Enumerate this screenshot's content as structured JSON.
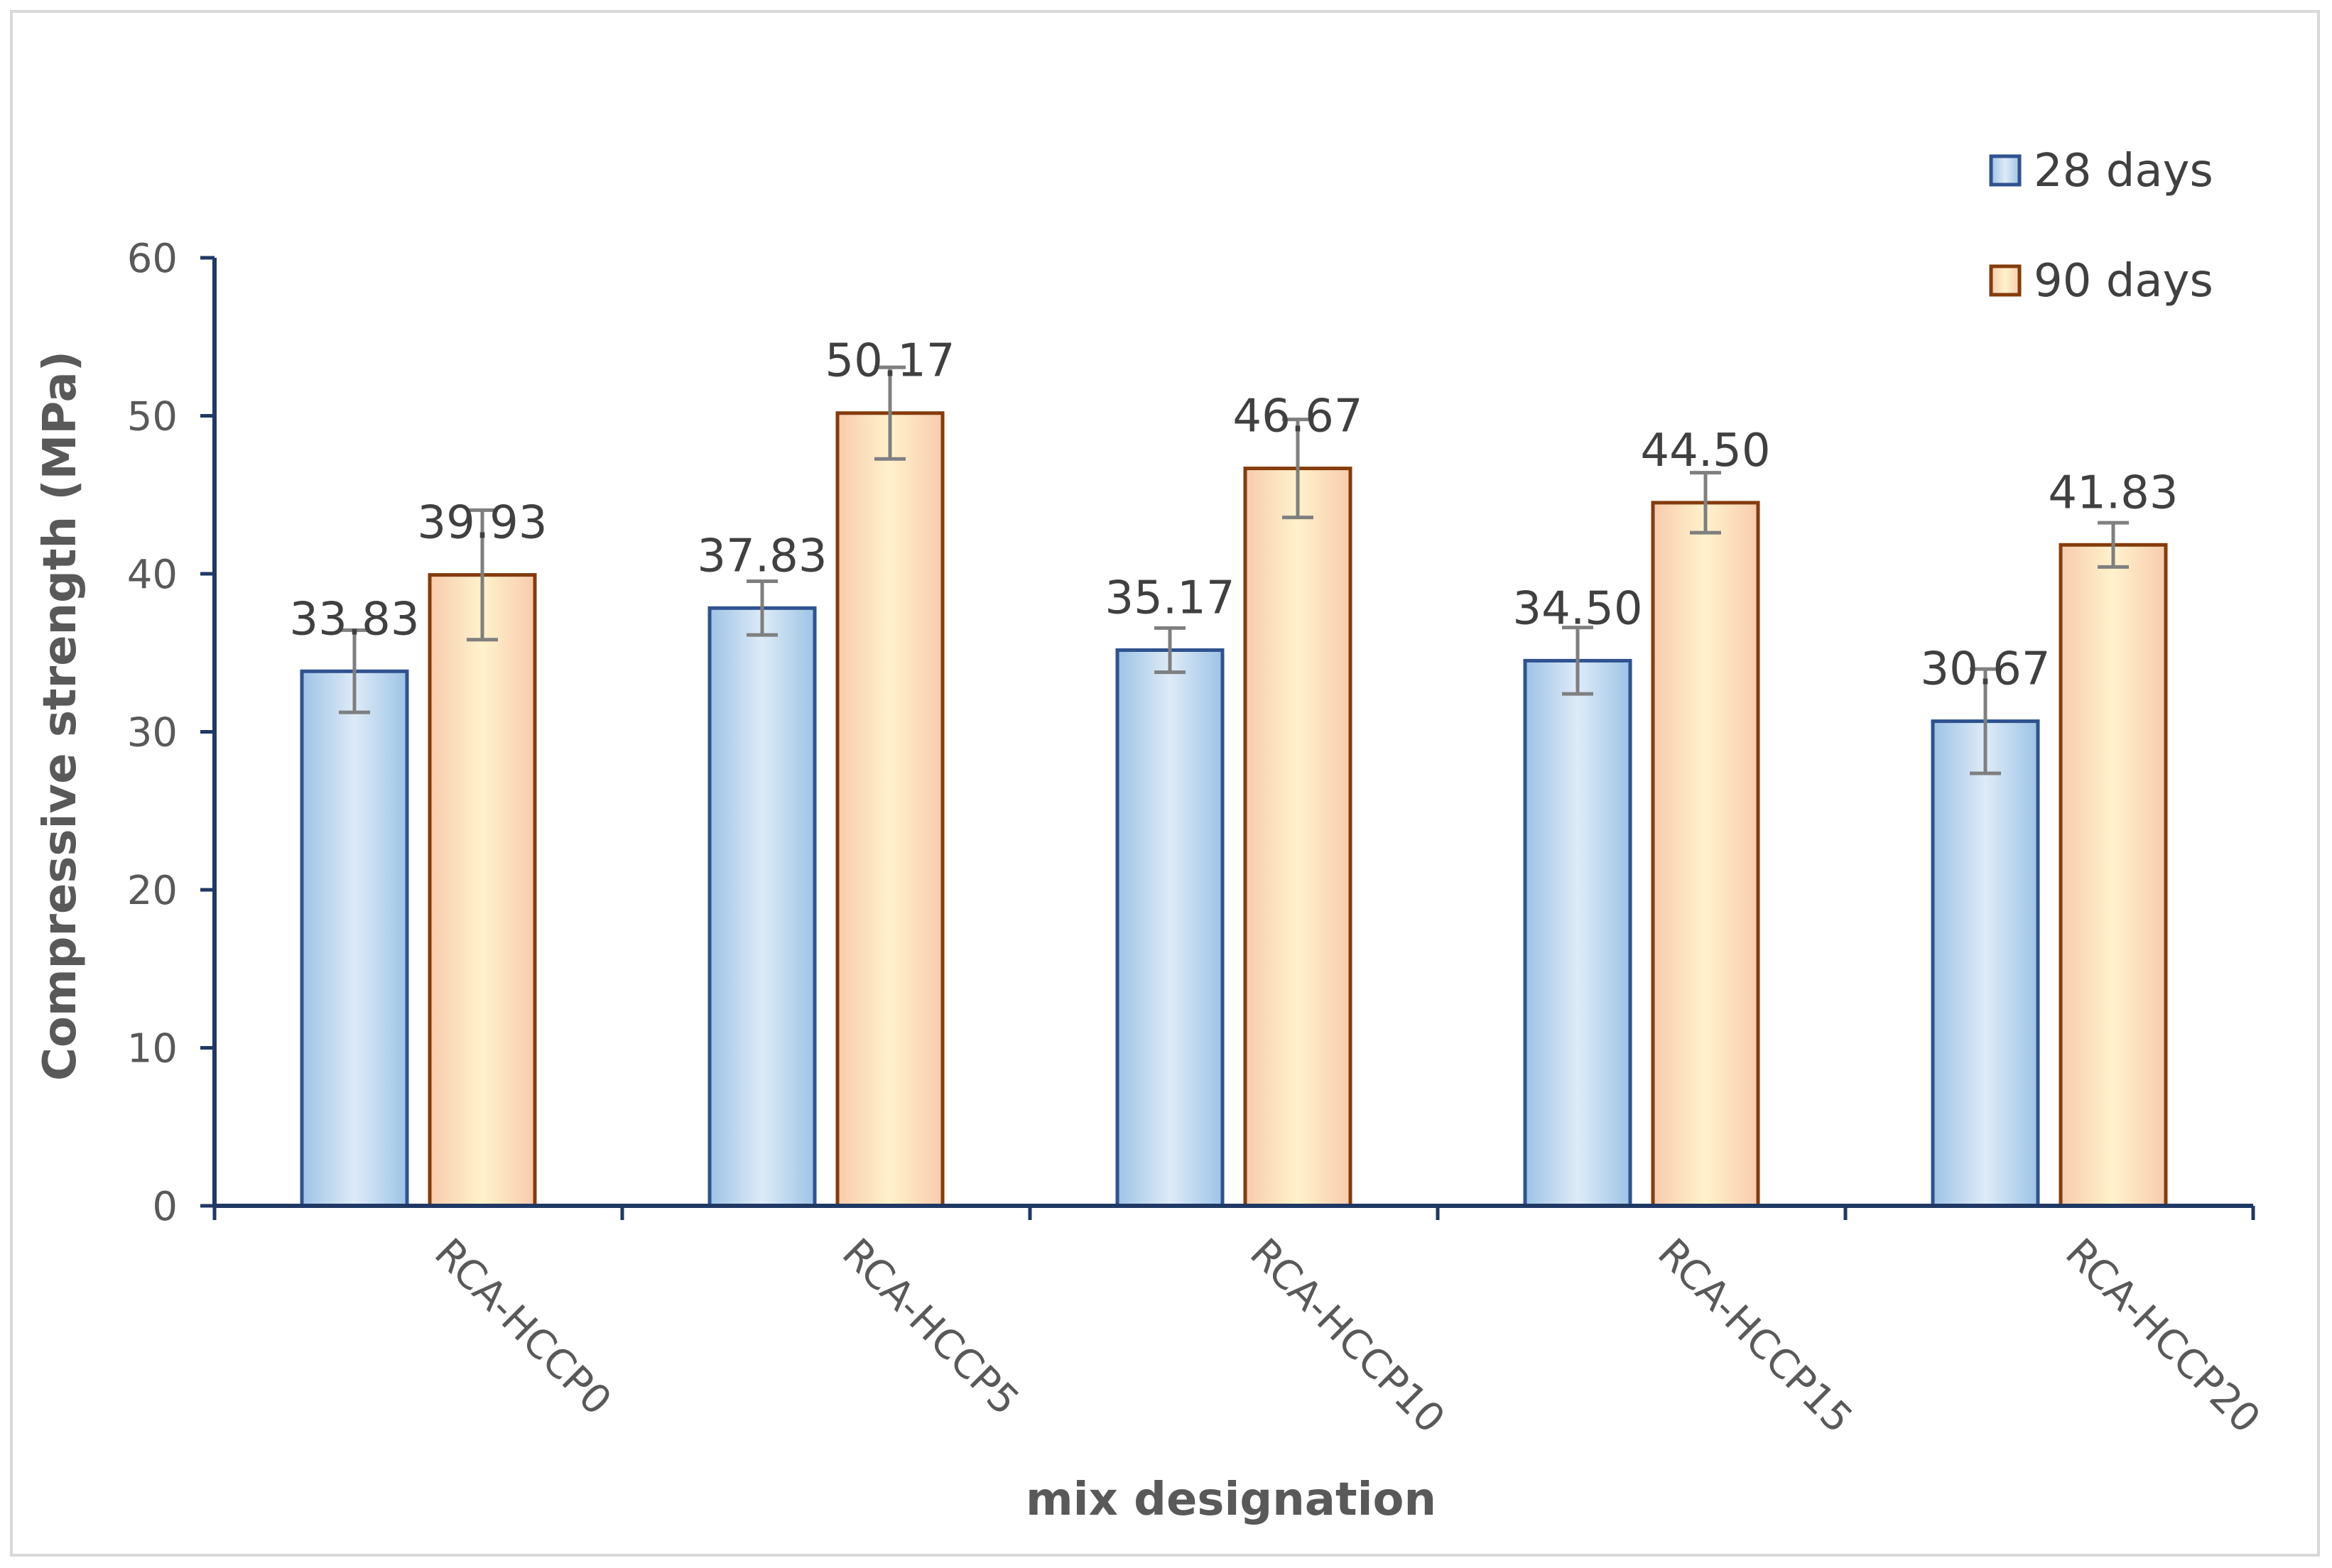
{
  "chart_data": {
    "type": "bar",
    "title": "",
    "xlabel": "mix designation",
    "ylabel": "Compressive strength (MPa)",
    "categories": [
      "RCA-HCCP0",
      "RCA-HCCP5",
      "RCA-HCCP10",
      "RCA-HCCP15",
      "RCA-HCCP20"
    ],
    "series": [
      {
        "name": "28 days",
        "values": [
          33.83,
          37.83,
          35.17,
          34.5,
          30.67
        ],
        "labels": [
          "33.83",
          "37.83",
          "35.17",
          "34.50",
          "30.67"
        ],
        "error": [
          2.6,
          1.7,
          1.4,
          2.1,
          3.3
        ],
        "color": "#4472c4"
      },
      {
        "name": "90 days",
        "values": [
          39.93,
          50.17,
          46.67,
          44.5,
          41.83
        ],
        "labels": [
          "39.93",
          "50.17",
          "46.67",
          "44.50",
          "41.83"
        ],
        "error": [
          4.1,
          2.9,
          3.1,
          1.9,
          1.4
        ],
        "color": "#ed7d31"
      }
    ],
    "ylim": [
      0,
      60
    ],
    "yticks": [
      0,
      10,
      20,
      30,
      40,
      50,
      60
    ],
    "grid": false,
    "legend": "top-right"
  }
}
